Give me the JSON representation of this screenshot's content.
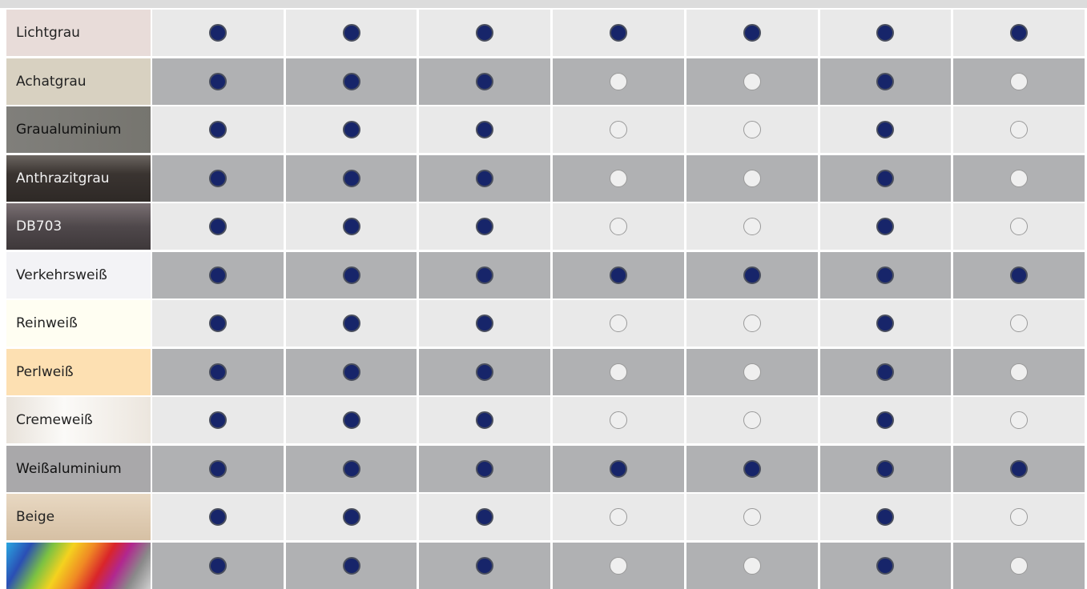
{
  "table": {
    "columns": 7,
    "rows": [
      {
        "label": "Lichtgrau",
        "color": "#e8dcd9",
        "text_color": "#222",
        "available": [
          true,
          true,
          true,
          true,
          true,
          true,
          true
        ]
      },
      {
        "label": "Achatgrau",
        "color": "#d8d1c1",
        "text_color": "#222",
        "available": [
          true,
          true,
          true,
          false,
          false,
          true,
          false
        ]
      },
      {
        "label": "Graualuminium",
        "color": "linear-gradient(90deg,#807f7b,#76756f)",
        "text_color": "#111",
        "available": [
          true,
          true,
          true,
          false,
          false,
          true,
          false
        ]
      },
      {
        "label": "Anthrazitgrau",
        "color": "linear-gradient(180deg,#6b6560,#3a3431 40%,#2e2926)",
        "text_color": "#f2f2f2",
        "available": [
          true,
          true,
          true,
          false,
          false,
          true,
          false
        ]
      },
      {
        "label": "DB703",
        "color": "linear-gradient(180deg,#7a7073,#4f484b 50%,#3e383a)",
        "text_color": "#f2f2f2",
        "available": [
          true,
          true,
          true,
          false,
          false,
          true,
          false
        ]
      },
      {
        "label": "Verkehrsweiß",
        "color": "#f3f3f6",
        "text_color": "#222",
        "available": [
          true,
          true,
          true,
          true,
          true,
          true,
          true
        ]
      },
      {
        "label": "Reinweiß",
        "color": "#fffef2",
        "text_color": "#222",
        "available": [
          true,
          true,
          true,
          false,
          false,
          true,
          false
        ]
      },
      {
        "label": "Perlweiß",
        "color": "#fde0b2",
        "text_color": "#222",
        "available": [
          true,
          true,
          true,
          false,
          false,
          true,
          false
        ]
      },
      {
        "label": "Cremeweiß",
        "color": "linear-gradient(90deg,#e8e2da,#fbfaf8 40%,#ece6de)",
        "text_color": "#222",
        "available": [
          true,
          true,
          true,
          false,
          false,
          true,
          false
        ]
      },
      {
        "label": "Weißaluminium",
        "color": "#a9a8aa",
        "text_color": "#111",
        "available": [
          true,
          true,
          true,
          true,
          true,
          true,
          true
        ]
      },
      {
        "label": "Beige",
        "color": "linear-gradient(180deg,#e8d8c2,#d6c0a4)",
        "text_color": "#222",
        "available": [
          true,
          true,
          true,
          false,
          false,
          true,
          false
        ]
      },
      {
        "color": "linear-gradient(120deg,#2aa7e0 0%,#2a4fb5 15%,#7cc242 28%,#f4d21f 40%,#f08a24 52%,#d9252a 64%,#b1278f 74%,#8a8a8a 86%,#cfcfcf 100%)",
        "available": [
          true,
          true,
          true,
          false,
          false,
          true,
          false
        ]
      }
    ],
    "filled_color": "#17256a",
    "empty_color": "#efefef",
    "light_row": "#e9e9e9",
    "dark_row": "#b0b1b3"
  }
}
